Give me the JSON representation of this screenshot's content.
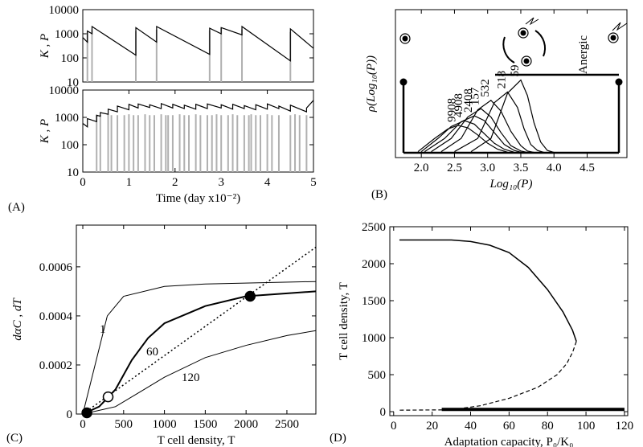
{
  "chart_data": [
    {
      "type": "line",
      "yscale": "log",
      "ylabel": "K , P",
      "xlim": [
        0,
        5
      ],
      "ylim": [
        10,
        10000
      ],
      "yticks": [
        10,
        100,
        1000,
        10000
      ],
      "series": [
        {
          "kind": "spike",
          "color": "#b0b0b0",
          "x": [
            0.1,
            0.2,
            1.15,
            1.6,
            2.75,
            3.0,
            3.45,
            4.5
          ],
          "values": [
            1200,
            1500,
            1300,
            1500,
            1400,
            1800,
            1500,
            1200
          ]
        },
        {
          "kind": "line",
          "color": "#000000",
          "x": [
            0,
            0.1,
            0.1,
            0.2,
            0.2,
            1.15,
            1.15,
            1.6,
            1.6,
            2.75,
            2.75,
            3.0,
            3.0,
            3.45,
            3.45,
            4.5,
            4.5,
            5
          ],
          "values": [
            700,
            450,
            1300,
            1000,
            2000,
            130,
            1800,
            450,
            2000,
            140,
            1700,
            1000,
            1800,
            900,
            2000,
            75,
            1600,
            250
          ]
        }
      ]
    },
    {
      "type": "line",
      "yscale": "log",
      "ylabel": "K , P",
      "xlabel": "Time (day x10⁻²)",
      "panel": "(A)",
      "xlim": [
        0,
        5
      ],
      "xticks": [
        0,
        1,
        2,
        3,
        4,
        5
      ],
      "ylim": [
        10,
        10000
      ],
      "yticks": [
        10,
        100,
        1000,
        10000
      ],
      "series": [
        {
          "kind": "spike",
          "color": "#b0b0b0",
          "x": [
            0.3,
            0.38,
            0.55,
            0.62,
            0.75,
            0.9,
            1.0,
            1.1,
            1.2,
            1.35,
            1.45,
            1.55,
            1.7,
            1.8,
            1.85,
            1.95,
            2.1,
            2.2,
            2.3,
            2.45,
            2.55,
            2.7,
            2.8,
            2.9,
            3.0,
            3.15,
            3.25,
            3.35,
            3.5,
            3.6,
            3.65,
            3.75,
            3.85,
            4.0,
            4.1,
            4.25,
            4.5,
            4.6,
            4.7,
            4.85
          ],
          "values": [
            1200,
            1200,
            1300,
            1200,
            1200,
            1200,
            1300,
            1200,
            1200,
            1300,
            1200,
            1200,
            1300,
            1200,
            1200,
            1200,
            1300,
            1200,
            1200,
            1300,
            1200,
            1200,
            1200,
            1300,
            1200,
            1200,
            1300,
            1200,
            1200,
            1200,
            1300,
            1200,
            1200,
            1300,
            1200,
            1200,
            1200,
            1300,
            1200,
            1200
          ]
        },
        {
          "kind": "line",
          "color": "#000000",
          "x": [
            0,
            0.1,
            0.1,
            0.3,
            0.3,
            0.38,
            0.38,
            0.55,
            0.55,
            0.75,
            0.75,
            1.0,
            1.0,
            1.2,
            1.2,
            1.45,
            1.45,
            1.7,
            1.7,
            1.95,
            1.95,
            2.2,
            2.2,
            2.45,
            2.45,
            2.7,
            2.7,
            3.0,
            3.0,
            3.25,
            3.25,
            3.5,
            3.5,
            3.75,
            3.75,
            4.0,
            4.0,
            4.25,
            4.25,
            4.5,
            4.5,
            4.85,
            4.85,
            5
          ],
          "values": [
            600,
            450,
            900,
            700,
            1200,
            1100,
            1500,
            1300,
            2000,
            1600,
            2600,
            1900,
            3000,
            2200,
            3100,
            2300,
            2900,
            2100,
            3200,
            2200,
            3000,
            2100,
            2800,
            2000,
            3000,
            2100,
            3100,
            2200,
            2900,
            2000,
            3000,
            2100,
            2700,
            1900,
            2900,
            2000,
            3100,
            2100,
            2600,
            1700,
            2800,
            1600,
            2200,
            4200
          ]
        }
      ]
    },
    {
      "type": "density",
      "xlabel": "Log₁₀(P)",
      "ylabel": "ρ(Log₁₀(P))",
      "panel": "(B)",
      "annotation": "Anergic",
      "xlim": [
        1.61,
        5.1
      ],
      "xticks": [
        2.0,
        2.5,
        3.0,
        3.5,
        4.0,
        4.5
      ],
      "xtick_labels": [
        "2.0",
        "2.5",
        "3.0",
        "3.5",
        "4.0",
        "4.5"
      ],
      "ylim": [
        -0.04,
        1.2
      ],
      "series": [
        {
          "kind": "line",
          "label": "9908",
          "color": "#000000",
          "x": [
            1.95,
            2.2,
            2.4,
            2.55,
            2.7,
            2.85,
            3.0,
            3.15,
            3.3
          ],
          "values": [
            0.01,
            0.12,
            0.2,
            0.23,
            0.21,
            0.15,
            0.08,
            0.03,
            0.005
          ]
        },
        {
          "kind": "line",
          "label": "4908",
          "color": "#000000",
          "x": [
            2.0,
            2.25,
            2.45,
            2.65,
            2.8,
            2.95,
            3.1,
            3.25,
            3.4
          ],
          "values": [
            0.01,
            0.12,
            0.22,
            0.27,
            0.24,
            0.16,
            0.08,
            0.03,
            0.005
          ]
        },
        {
          "kind": "line",
          "label": "2408",
          "color": "#000000",
          "x": [
            2.05,
            2.35,
            2.6,
            2.8,
            2.95,
            3.1,
            3.25,
            3.4,
            3.5
          ],
          "values": [
            0.01,
            0.12,
            0.26,
            0.31,
            0.27,
            0.17,
            0.07,
            0.02,
            0.005
          ]
        },
        {
          "kind": "line",
          "label": "157",
          "color": "#000000",
          "x": [
            2.15,
            2.45,
            2.7,
            2.9,
            3.05,
            3.2,
            3.35,
            3.5,
            3.6
          ],
          "values": [
            0.01,
            0.12,
            0.3,
            0.37,
            0.3,
            0.17,
            0.06,
            0.015,
            0.003
          ]
        },
        {
          "kind": "line",
          "label": "532",
          "color": "#000000",
          "x": [
            2.3,
            2.6,
            2.85,
            3.05,
            3.2,
            3.35,
            3.5,
            3.6,
            3.7
          ],
          "values": [
            0.01,
            0.12,
            0.36,
            0.44,
            0.35,
            0.18,
            0.06,
            0.015,
            0.003
          ]
        },
        {
          "kind": "line",
          "label": "218",
          "color": "#000000",
          "x": [
            2.5,
            2.85,
            3.1,
            3.3,
            3.45,
            3.55,
            3.65,
            3.75,
            3.85
          ],
          "values": [
            0.01,
            0.12,
            0.42,
            0.51,
            0.38,
            0.2,
            0.07,
            0.02,
            0.003
          ]
        },
        {
          "kind": "line",
          "label": "59",
          "color": "#000000",
          "x": [
            2.75,
            3.05,
            3.3,
            3.5,
            3.6,
            3.7,
            3.8,
            3.9,
            4.0
          ],
          "values": [
            0.01,
            0.12,
            0.5,
            0.61,
            0.48,
            0.25,
            0.09,
            0.02,
            0.003
          ]
        }
      ]
    },
    {
      "type": "line",
      "xlabel": "T cell density, T",
      "ylabel": "dαC , dT",
      "panel": "(C)",
      "xlim": [
        -79,
        2855
      ],
      "xticks": [
        0,
        500,
        1000,
        1500,
        2000,
        2500
      ],
      "ylim": [
        0,
        0.00077
      ],
      "yticks": [
        0,
        0.0002,
        0.0004,
        0.0006
      ],
      "series": [
        {
          "kind": "line",
          "label": "1",
          "color": "#000000",
          "width": 1,
          "x": [
            0,
            150,
            300,
            500,
            1000,
            1500,
            2855
          ],
          "values": [
            0,
            0.0002,
            0.0004,
            0.00048,
            0.00052,
            0.00053,
            0.00054
          ]
        },
        {
          "kind": "line",
          "label": "60",
          "color": "#000000",
          "width": 2,
          "x": [
            0,
            200,
            400,
            600,
            800,
            1000,
            1500,
            2000,
            2855
          ],
          "values": [
            0,
            3e-05,
            0.0001,
            0.00022,
            0.00031,
            0.00037,
            0.00044,
            0.00048,
            0.0005
          ]
        },
        {
          "kind": "line",
          "label": "120",
          "color": "#000000",
          "width": 1,
          "x": [
            0,
            400,
            700,
            1000,
            1500,
            2000,
            2500,
            2855
          ],
          "values": [
            0,
            3e-05,
            9e-05,
            0.00015,
            0.00023,
            0.00028,
            0.00032,
            0.00034
          ]
        },
        {
          "kind": "line",
          "dash": "dotted",
          "color": "#000000",
          "width": 1.5,
          "x": [
            0,
            2855
          ],
          "values": [
            0,
            0.00068
          ]
        },
        {
          "kind": "point",
          "color": "#000000",
          "fill": "#000000",
          "x": [
            50,
            2050
          ],
          "values": [
            5e-06,
            0.00048
          ]
        },
        {
          "kind": "point",
          "color": "#000000",
          "fill": "#ffffff",
          "x": [
            310
          ],
          "values": [
            7e-05
          ]
        }
      ]
    },
    {
      "type": "line",
      "xlabel": "Adaptation capacity, P₀/K₀",
      "ylabel": "T cell density, T",
      "panel": "(D)",
      "xlim": [
        -2,
        121.7
      ],
      "xticks": [
        0,
        20,
        40,
        60,
        80,
        100,
        120
      ],
      "ylim": [
        -54,
        2500
      ],
      "yticks": [
        0,
        500,
        1000,
        1500,
        2000,
        2500
      ],
      "series": [
        {
          "kind": "line",
          "color": "#000000",
          "width": 1.5,
          "x": [
            3,
            30,
            40,
            50,
            60,
            70,
            80,
            88,
            93,
            95
          ],
          "values": [
            2320,
            2320,
            2300,
            2250,
            2150,
            1950,
            1650,
            1350,
            1100,
            950
          ]
        },
        {
          "kind": "line",
          "dash": "dashed",
          "color": "#000000",
          "width": 1.2,
          "x": [
            95,
            93,
            90,
            85,
            75,
            60,
            45,
            30,
            3
          ],
          "values": [
            950,
            800,
            650,
            500,
            330,
            180,
            80,
            25,
            20
          ]
        },
        {
          "kind": "line",
          "color": "#000000",
          "width": 4,
          "x": [
            25,
            120
          ],
          "values": [
            30,
            30
          ]
        }
      ]
    }
  ]
}
